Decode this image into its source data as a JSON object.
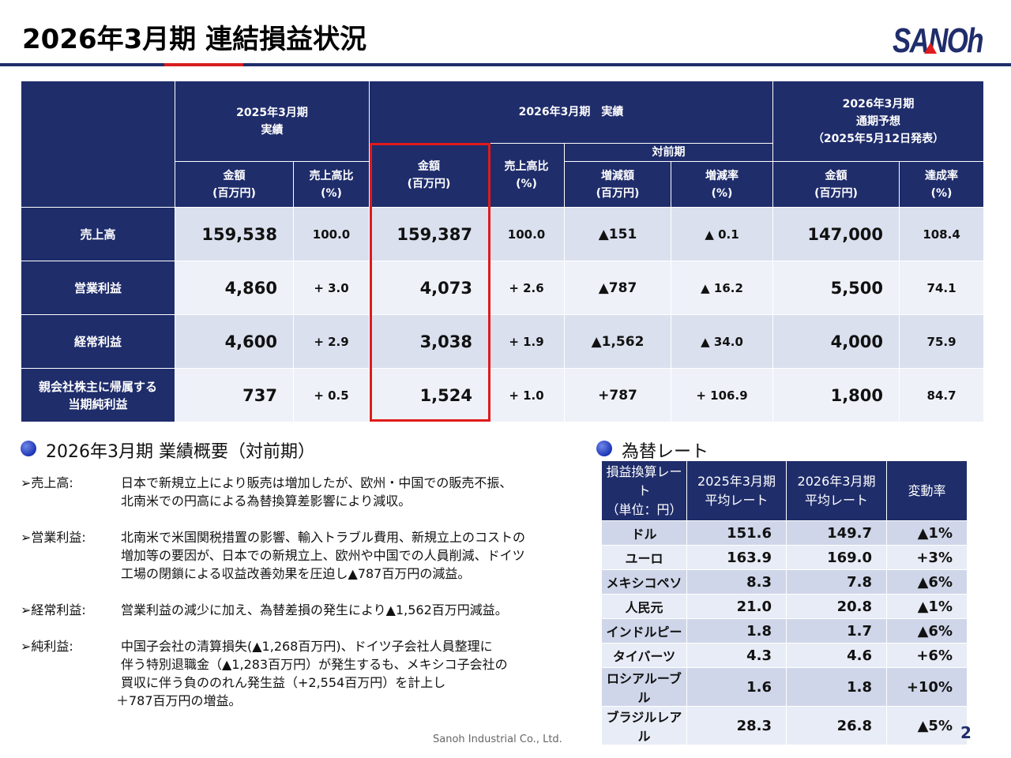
{
  "header": {
    "title": "2026年3月期 連結損益状況",
    "logo_text": "SANOh"
  },
  "colors": {
    "brand_navy": "#1f2d6b",
    "accent_red": "#e01b1b",
    "row_light": "#eef1f8",
    "row_mid": "#dae0ee"
  },
  "main_table": {
    "group_fy25": "2025年3月期\n実績",
    "group_fy26": "2026年3月期　実績",
    "group_forecast": "2026年3月期\n通期予想\n（2025年5月12日発表）",
    "sub_yoy": "対前期",
    "col_amount": "金額\n(百万円)",
    "col_ratio": "売上高比\n(%)",
    "col_change": "増減額\n(百万円)",
    "col_change_rate": "増減率\n(%)",
    "col_fc_amount": "金額\n(百万円)",
    "col_achievement": "達成率\n(%)",
    "rows": [
      {
        "label": "売上高",
        "fy25_amount": "159,538",
        "fy25_ratio": "100.0",
        "fy26_amount": "159,387",
        "fy26_ratio": "100.0",
        "change": "▲151",
        "change_rate": "▲ 0.1",
        "fc_amount": "147,000",
        "achievement": "108.4"
      },
      {
        "label": "営業利益",
        "fy25_amount": "4,860",
        "fy25_ratio": "+ 3.0",
        "fy26_amount": "4,073",
        "fy26_ratio": "+ 2.6",
        "change": "▲787",
        "change_rate": "▲ 16.2",
        "fc_amount": "5,500",
        "achievement": "74.1"
      },
      {
        "label": "経常利益",
        "fy25_amount": "4,600",
        "fy25_ratio": "+ 2.9",
        "fy26_amount": "3,038",
        "fy26_ratio": "+ 1.9",
        "change": "▲1,562",
        "change_rate": "▲ 34.0",
        "fc_amount": "4,000",
        "achievement": "75.9"
      },
      {
        "label": "親会社株主に帰属する\n当期純利益",
        "fy25_amount": "737",
        "fy25_ratio": "+ 0.5",
        "fy26_amount": "1,524",
        "fy26_ratio": "+ 1.0",
        "change": "+787",
        "change_rate": "+ 106.9",
        "fc_amount": "1,800",
        "achievement": "84.7"
      }
    ]
  },
  "summary": {
    "title": "2026年3月期 業績概要（対前期）",
    "items": [
      {
        "label": "売上高:",
        "lines": [
          "日本で新規立上により販売は増加したが、欧州・中国での販売不振、",
          "北南米での円高による為替換算差影響により減収。"
        ]
      },
      {
        "label": "営業利益:",
        "lines": [
          "北南米で米国関税措置の影響、輸入トラブル費用、新規立上のコストの",
          "増加等の要因が、日本での新規立上、欧州や中国での人員削減、ドイツ",
          "工場の閉鎖による収益改善効果を圧迫し▲787百万円の減益。"
        ]
      },
      {
        "label": "経常利益:",
        "lines": [
          "営業利益の減少に加え、為替差損の発生により▲1,562百万円減益。"
        ]
      },
      {
        "label": "純利益:",
        "lines": [
          "中国子会社の清算損失(▲1,268百万円)、ドイツ子会社人員整理に",
          "伴う特別退職金（▲1,283百万円）が発生するも、メキシコ子会社の",
          "買収に伴う負ののれん発生益（+2,554百万円）を計上し",
          "＋787百万円の増益。"
        ]
      }
    ]
  },
  "fx": {
    "title": "為替レート",
    "head_currency": "損益換算レート\n（単位：円）",
    "head_fy25": "2025年3月期\n平均レート",
    "head_fy26": "2026年3月期\n平均レート",
    "head_change": "変動率",
    "rows": [
      {
        "currency": "ドル",
        "fy25": "151.6",
        "fy26": "149.7",
        "change": "▲1%"
      },
      {
        "currency": "ユーロ",
        "fy25": "163.9",
        "fy26": "169.0",
        "change": "+3%"
      },
      {
        "currency": "メキシコペソ",
        "fy25": "8.3",
        "fy26": "7.8",
        "change": "▲6%"
      },
      {
        "currency": "人民元",
        "fy25": "21.0",
        "fy26": "20.8",
        "change": "▲1%"
      },
      {
        "currency": "インドルピー",
        "fy25": "1.8",
        "fy26": "1.7",
        "change": "▲6%"
      },
      {
        "currency": "タイバーツ",
        "fy25": "4.3",
        "fy26": "4.6",
        "change": "+6%"
      },
      {
        "currency": "ロシアルーブル",
        "fy25": "1.6",
        "fy26": "1.8",
        "change": "+10%"
      },
      {
        "currency": "ブラジルレアル",
        "fy25": "28.3",
        "fy26": "26.8",
        "change": "▲5%"
      }
    ]
  },
  "footer": {
    "company": "Sanoh Industrial Co., Ltd.",
    "page": "2"
  }
}
